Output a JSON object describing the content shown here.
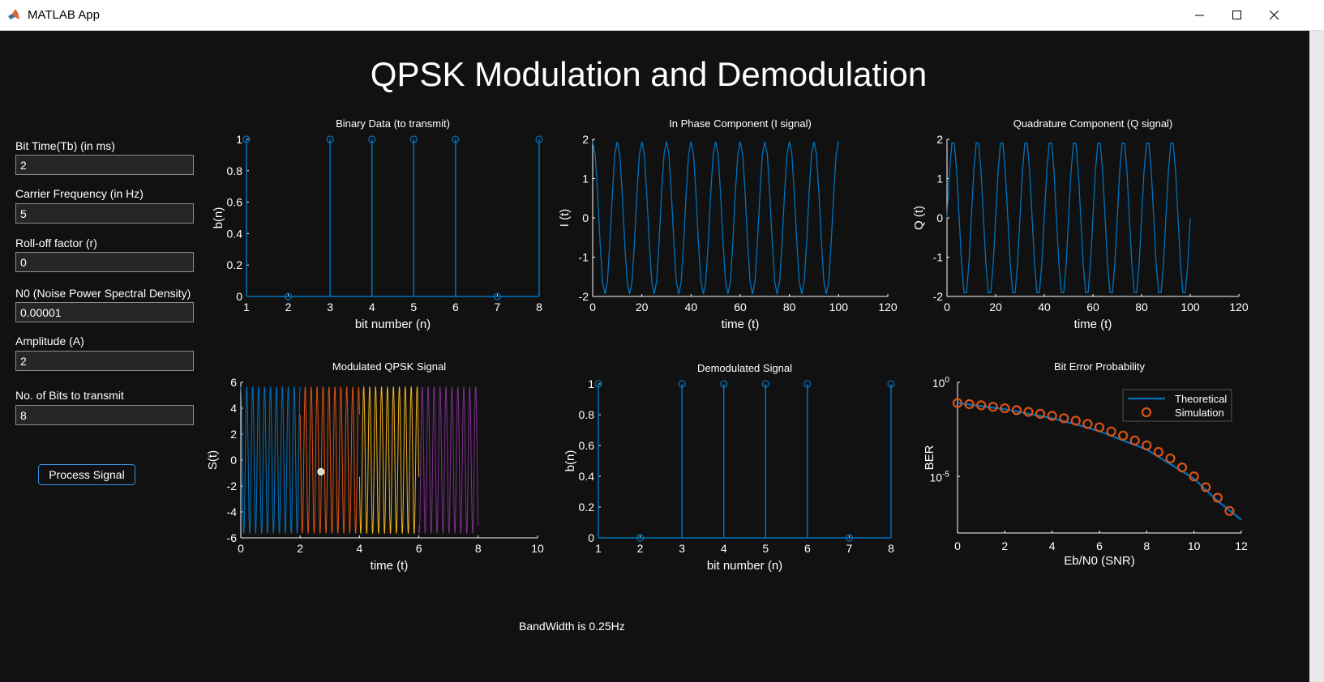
{
  "window": {
    "title": "MATLAB App"
  },
  "app": {
    "title": "QPSK Modulation and Demodulation"
  },
  "inputs": [
    {
      "label": "Bit Time(Tb) (in ms)",
      "value": "2"
    },
    {
      "label": "Carrier Frequency (in Hz)",
      "value": "5"
    },
    {
      "label": "Roll-off factor (r)",
      "value": "0"
    },
    {
      "label": "N0 (Noise Power Spectral Density)",
      "value": "0.00001"
    },
    {
      "label": "Amplitude (A)",
      "value": "2"
    },
    {
      "label": "No. of Bits to transmit",
      "value": "8"
    }
  ],
  "process_button": "Process Signal",
  "bandwidth_text": "BandWidth is 0.25Hz",
  "colors": {
    "background": "#111111",
    "series_blue": "#0072BD",
    "series_orange": "#D95319",
    "series_yellow": "#EDB120",
    "series_purple": "#7E2F8E"
  },
  "chart_data": [
    {
      "id": "binary",
      "type": "stem",
      "title": "Binary Data (to transmit)",
      "xlabel": "bit number (n)",
      "ylabel": "b(n)",
      "xlim": [
        1,
        8
      ],
      "ylim": [
        0,
        1
      ],
      "xticks": [
        "1",
        "2",
        "3",
        "4",
        "5",
        "6",
        "7",
        "8"
      ],
      "yticks": [
        "0",
        "0.2",
        "0.4",
        "0.6",
        "0.8",
        "1"
      ],
      "x": [
        1,
        2,
        3,
        4,
        5,
        6,
        7,
        8
      ],
      "values": [
        1,
        0,
        1,
        1,
        1,
        1,
        0,
        1
      ]
    },
    {
      "id": "iphase",
      "type": "line",
      "title": "In Phase Component (I signal)",
      "xlabel": "time (t)",
      "ylabel": "I (t)",
      "xlim": [
        0,
        120
      ],
      "ylim": [
        -2,
        2
      ],
      "xticks": [
        "0",
        "20",
        "40",
        "60",
        "80",
        "100",
        "120"
      ],
      "yticks": [
        "-2",
        "-1",
        "0",
        "1",
        "2"
      ],
      "amplitude": 2,
      "samples": 101,
      "period_samples": 10,
      "phase": "cosine",
      "points": "generated"
    },
    {
      "id": "quad",
      "type": "line",
      "title": "Quadrature Component (Q signal)",
      "xlabel": "time (t)",
      "ylabel": "Q (t)",
      "xlim": [
        0,
        120
      ],
      "ylim": [
        -2,
        2
      ],
      "xticks": [
        "0",
        "20",
        "40",
        "60",
        "80",
        "100",
        "120"
      ],
      "yticks": [
        "-2",
        "-1",
        "0",
        "1",
        "2"
      ],
      "amplitude": 2,
      "samples": 101,
      "period_samples": 10,
      "phase": "sine",
      "points": "generated"
    },
    {
      "id": "mod",
      "type": "line",
      "title": "Modulated QPSK Signal",
      "xlabel": "time (t)",
      "ylabel": "S(t)",
      "xlim": [
        0,
        10
      ],
      "ylim": [
        -6,
        6
      ],
      "xticks": [
        "0",
        "2",
        "4",
        "6",
        "8",
        "10"
      ],
      "yticks": [
        "-6",
        "-4",
        "-2",
        "0",
        "2",
        "4",
        "6"
      ],
      "amplitude": 5.66,
      "series": [
        {
          "range": [
            0,
            2
          ]
        },
        {
          "range": [
            2,
            4
          ]
        },
        {
          "range": [
            4,
            6
          ]
        },
        {
          "range": [
            6,
            8
          ]
        }
      ],
      "marker": {
        "x": 2.7,
        "y": -0.9
      }
    },
    {
      "id": "demod",
      "type": "stem",
      "title": "Demodulated Signal",
      "xlabel": "bit number (n)",
      "ylabel": "b(n)",
      "xlim": [
        1,
        8
      ],
      "ylim": [
        0,
        1
      ],
      "xticks": [
        "1",
        "2",
        "3",
        "4",
        "5",
        "6",
        "7",
        "8"
      ],
      "yticks": [
        "0",
        "0.2",
        "0.4",
        "0.6",
        "0.8",
        "1"
      ],
      "x": [
        1,
        2,
        3,
        4,
        5,
        6,
        7,
        8
      ],
      "values": [
        1,
        0,
        1,
        1,
        1,
        1,
        0,
        1
      ]
    },
    {
      "id": "ber",
      "type": "line",
      "title": "Bit Error Probability",
      "xlabel": "Eb/N0 (SNR)",
      "ylabel": "BER",
      "xlim": [
        0,
        12
      ],
      "ylog": true,
      "ylim_log10": [
        -8,
        0
      ],
      "xticks": [
        "0",
        "2",
        "4",
        "6",
        "8",
        "10",
        "12"
      ],
      "yticks_base": "10",
      "yticks_exp": [
        "0",
        "-5"
      ],
      "ytick_values_log10": [
        0,
        -5
      ],
      "series": [
        {
          "name": "Theoretical",
          "style": "line",
          "x": [
            0,
            1,
            2,
            3,
            4,
            5,
            6,
            7,
            8,
            9,
            10,
            11,
            12
          ],
          "log10_values": [
            -1.1,
            -1.27,
            -1.43,
            -1.67,
            -1.91,
            -2.23,
            -2.6,
            -3.09,
            -3.57,
            -4.35,
            -5.12,
            -6.3,
            -7.3
          ]
        },
        {
          "name": "Simulation",
          "style": "marker",
          "x": [
            0,
            0.5,
            1,
            1.5,
            2,
            2.5,
            3,
            3.5,
            4,
            4.5,
            5,
            5.5,
            6,
            6.5,
            7,
            7.5,
            8,
            8.5,
            9,
            9.5,
            10,
            10.5,
            11,
            11.5
          ],
          "log10_values": [
            -1.1,
            -1.16,
            -1.22,
            -1.3,
            -1.38,
            -1.48,
            -1.57,
            -1.67,
            -1.78,
            -1.91,
            -2.04,
            -2.21,
            -2.39,
            -2.61,
            -2.83,
            -3.09,
            -3.35,
            -3.7,
            -4.04,
            -4.52,
            -5.0,
            -5.57,
            -6.13,
            -6.83
          ]
        }
      ],
      "legend_position": "top-right"
    }
  ]
}
